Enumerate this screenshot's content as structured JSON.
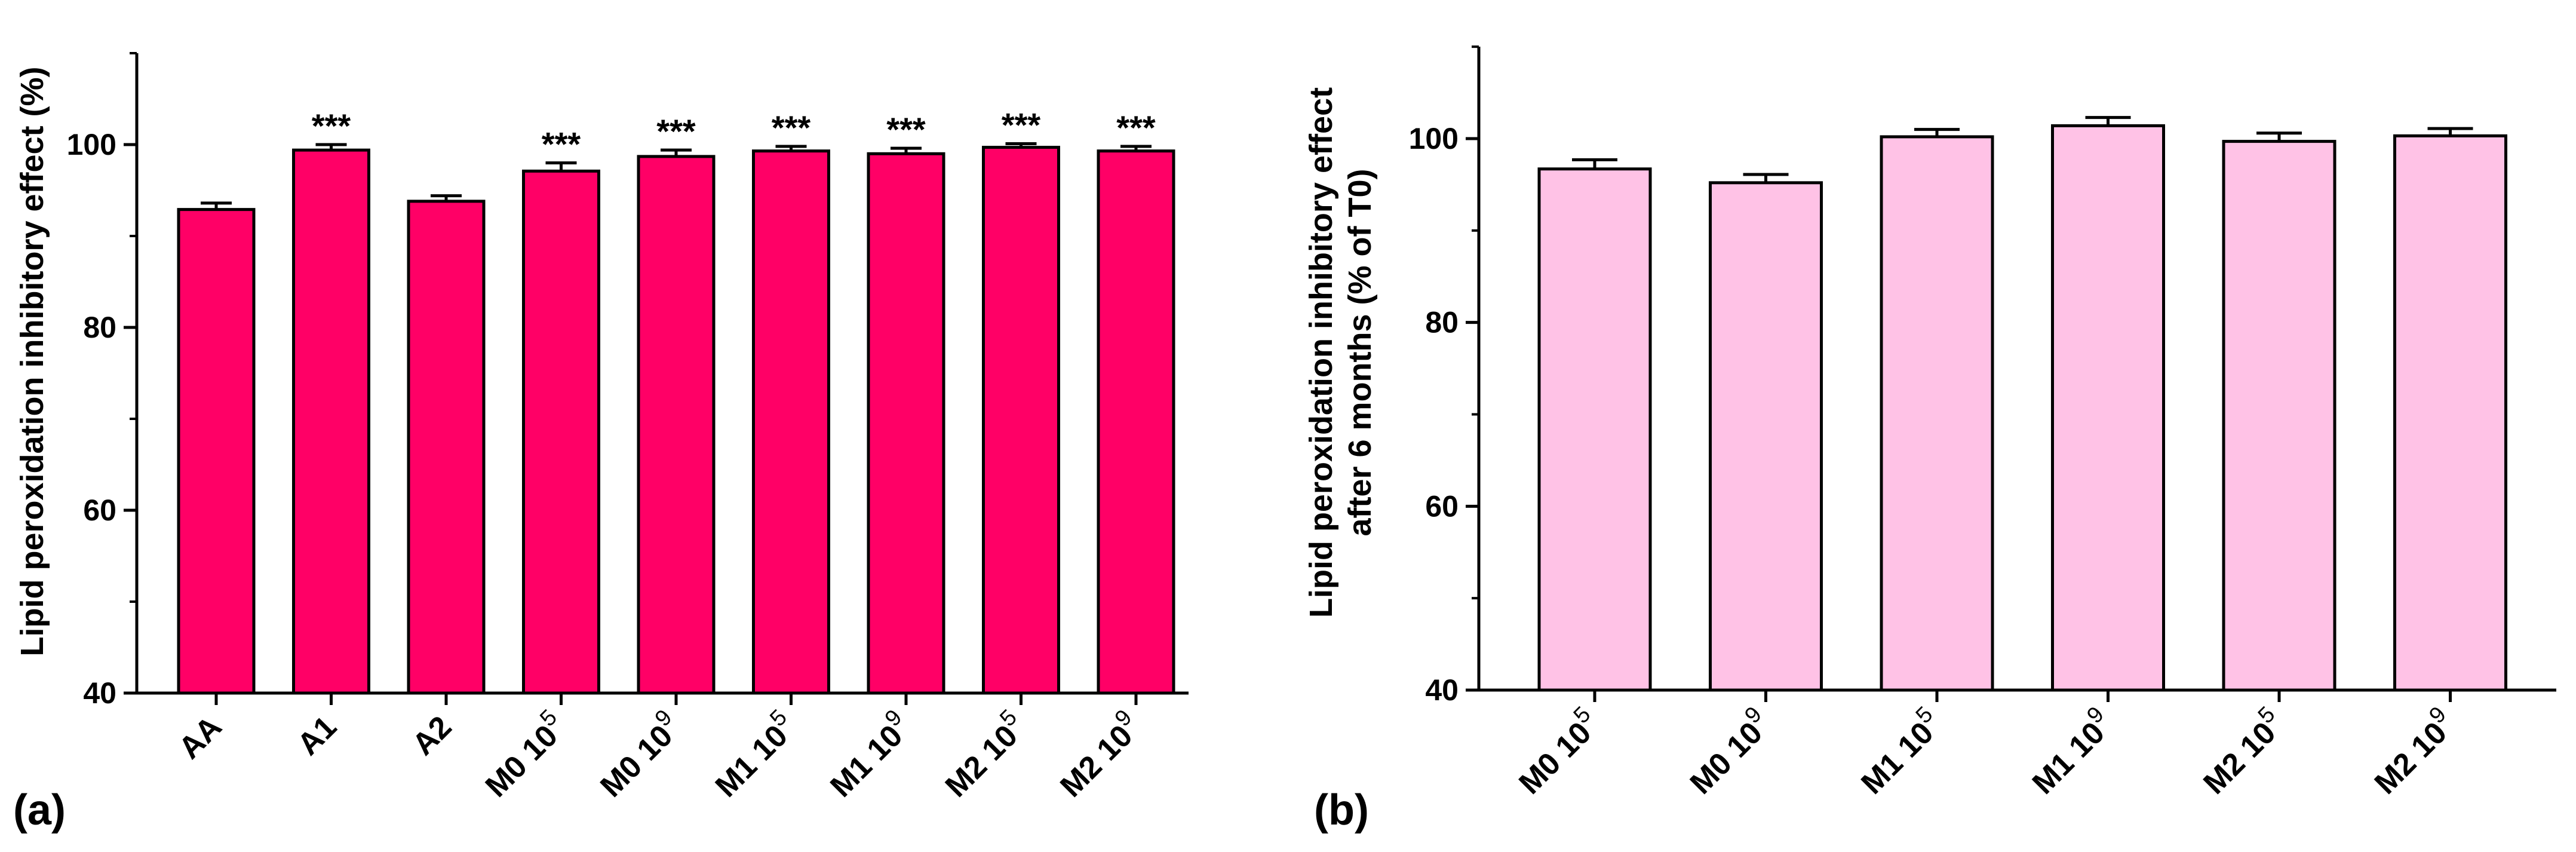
{
  "chart_data": [
    {
      "panel": "(a)",
      "type": "bar",
      "title": "",
      "xlabel": "",
      "ylabel": "Lipid peroxidation inhibitory effect (%)",
      "ylim": [
        40,
        110
      ],
      "yticks": [
        40,
        60,
        80,
        100
      ],
      "bar_color": "#FF0066",
      "categories": [
        {
          "base": "AA",
          "sup": ""
        },
        {
          "base": "A1",
          "sup": ""
        },
        {
          "base": "A2",
          "sup": ""
        },
        {
          "base": "M0 10",
          "sup": "5"
        },
        {
          "base": "M0 10",
          "sup": "9"
        },
        {
          "base": "M1 10",
          "sup": "5"
        },
        {
          "base": "M1 10",
          "sup": "9"
        },
        {
          "base": "M2 10",
          "sup": "5"
        },
        {
          "base": "M2 10",
          "sup": "9"
        }
      ],
      "values": [
        92.9,
        99.4,
        93.8,
        97.1,
        98.7,
        99.3,
        99.0,
        99.7,
        99.3
      ],
      "errors": [
        0.7,
        0.6,
        0.6,
        0.9,
        0.7,
        0.5,
        0.6,
        0.4,
        0.5
      ],
      "annotations": [
        "",
        "***",
        "",
        "***",
        "***",
        "***",
        "***",
        "***",
        "***"
      ]
    },
    {
      "panel": "(b)",
      "type": "bar",
      "title": "",
      "xlabel": "",
      "ylabel": [
        "Lipid peroxidation inhibitory effect",
        "after 6 months (% of T0)"
      ],
      "ylim": [
        40,
        110
      ],
      "yticks": [
        40,
        60,
        80,
        100
      ],
      "bar_color": "#FFC2E6",
      "categories": [
        {
          "base": "M0 10",
          "sup": "5"
        },
        {
          "base": "M0 10",
          "sup": "9"
        },
        {
          "base": "M1 10",
          "sup": "5"
        },
        {
          "base": "M1 10",
          "sup": "9"
        },
        {
          "base": "M2 10",
          "sup": "5"
        },
        {
          "base": "M2 10",
          "sup": "9"
        }
      ],
      "values": [
        96.7,
        95.2,
        100.2,
        101.4,
        99.7,
        100.3
      ],
      "errors": [
        1.0,
        0.9,
        0.8,
        0.9,
        0.9,
        0.8
      ],
      "annotations": [
        "",
        "",
        "",
        "",
        "",
        ""
      ]
    }
  ]
}
